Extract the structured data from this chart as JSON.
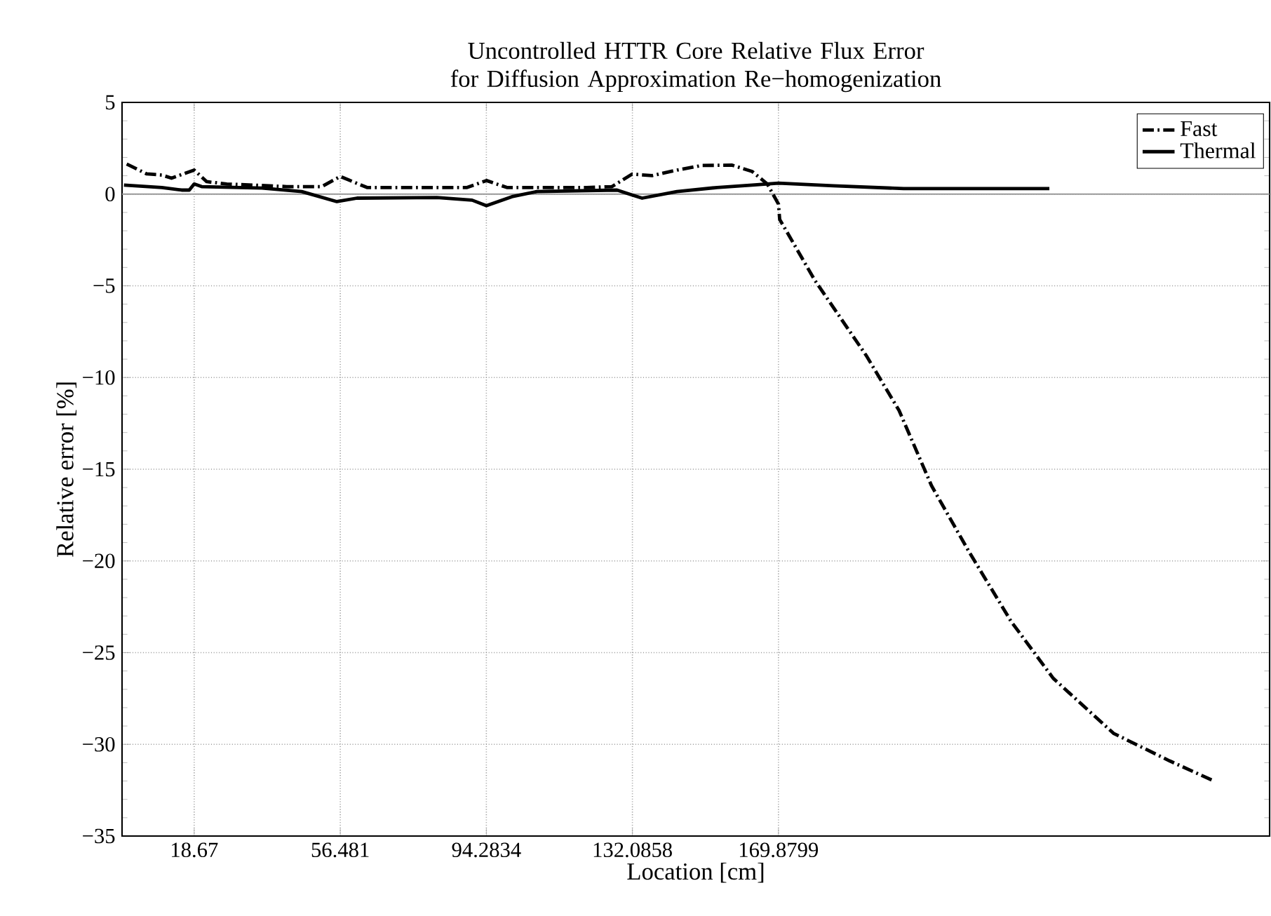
{
  "chart_data": {
    "type": "line",
    "title": "Uncontrolled HTTR Core Relative Flux Error for Diffusion Approximation Re−homogenization",
    "xlabel": "Location [cm]",
    "ylabel": "Relative error [%]",
    "xlim": [
      0,
      297
    ],
    "ylim": [
      -35,
      5
    ],
    "xticks": [
      18.67,
      56.481,
      94.2834,
      132.0858,
      169.8799
    ],
    "yticks": [
      {
        "value": -35,
        "label": "−35"
      },
      {
        "value": -30,
        "label": "−30"
      },
      {
        "value": -25,
        "label": "−25"
      },
      {
        "value": -20,
        "label": "−20"
      },
      {
        "value": -15,
        "label": "−15"
      },
      {
        "value": -10,
        "label": "−10"
      },
      {
        "value": -5,
        "label": "−5"
      },
      0,
      5
    ],
    "grid": true,
    "legend": "top right",
    "marker": "none",
    "ref_lines": [
      {
        "axis": "y",
        "value": 0,
        "color": "#999999"
      }
    ],
    "series": [
      {
        "name": "Fast",
        "color": "#000000",
        "line_style": "dashdot",
        "x": [
          1.2,
          6.4,
          10.3,
          12.8,
          18.67,
          21.9,
          27.1,
          42.6,
          51.7,
          56.5,
          63.4,
          89.3,
          94.3,
          99.6,
          120.3,
          126.8,
          132.0,
          137.2,
          143.6,
          150.1,
          157.9,
          163.1,
          167.0,
          169.9,
          170.2,
          179.3,
          192.6,
          201.1,
          209.5,
          219.2,
          230.1,
          241.0,
          256.6,
          271.1,
          282.6
        ],
        "values": [
          1.64,
          1.1,
          1.04,
          0.87,
          1.31,
          0.68,
          0.55,
          0.41,
          0.41,
          0.96,
          0.36,
          0.36,
          0.74,
          0.36,
          0.36,
          0.41,
          1.09,
          1.01,
          1.31,
          1.56,
          1.58,
          1.23,
          0.55,
          -0.55,
          -1.38,
          -4.7,
          -8.8,
          -11.8,
          -15.9,
          -19.5,
          -23.3,
          -26.4,
          -29.4,
          -30.9,
          -32.0
        ]
      },
      {
        "name": "Thermal",
        "color": "#000000",
        "line_style": "solid",
        "x": [
          0.5,
          10.3,
          15.4,
          17.4,
          18.67,
          20.6,
          36.2,
          46.5,
          55.6,
          60.8,
          81.5,
          90.6,
          94.3,
          100.9,
          107.4,
          128.1,
          132.0,
          134.6,
          143.6,
          154.0,
          163.1,
          169.9,
          184.1,
          202.3,
          240.0
        ],
        "values": [
          0.49,
          0.36,
          0.22,
          0.22,
          0.55,
          0.41,
          0.33,
          0.14,
          -0.41,
          -0.22,
          -0.19,
          -0.33,
          -0.63,
          -0.14,
          0.14,
          0.22,
          -0.05,
          -0.22,
          0.14,
          0.36,
          0.49,
          0.6,
          0.45,
          0.3,
          0.3
        ]
      }
    ]
  }
}
